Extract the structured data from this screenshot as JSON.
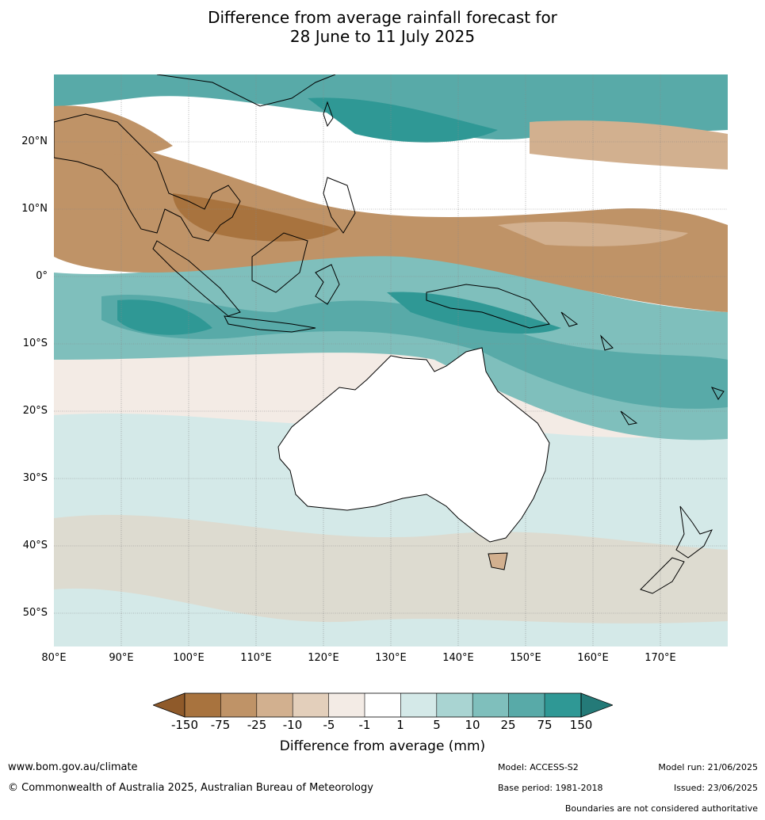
{
  "title": {
    "line1": "Difference from average rainfall forecast for",
    "line2": "28 June to 11 July 2025"
  },
  "map": {
    "lat_labels": [
      "20°N",
      "10°N",
      "0°",
      "10°S",
      "20°S",
      "30°S",
      "40°S",
      "50°S"
    ],
    "lon_labels": [
      "80°E",
      "90°E",
      "100°E",
      "110°E",
      "120°E",
      "130°E",
      "140°E",
      "150°E",
      "160°E",
      "170°E"
    ],
    "lat_range": [
      -55,
      30
    ],
    "lon_range": [
      80,
      180
    ]
  },
  "legend": {
    "title": "Difference from average (mm)",
    "ticks": [
      "-150",
      "-75",
      "-25",
      "-10",
      "-5",
      "-1",
      "1",
      "5",
      "10",
      "25",
      "75",
      "150"
    ],
    "colors": {
      "below_150": "#8f5a2a",
      "m150_m75": "#a8733e",
      "m75_m25": "#bf9367",
      "m25_m10": "#d2b08f",
      "m10_m5": "#e3cfbb",
      "m5_m1": "#f3ebe5",
      "m1_1": "#ffffff",
      "p1_5": "#d4e9e8",
      "p5_10": "#a9d4d2",
      "p10_25": "#7fbfbc",
      "p25_75": "#58aaa8",
      "p75_150": "#2f9895",
      "above_150": "#247a78"
    }
  },
  "footer": {
    "url": "www.bom.gov.au/climate",
    "copyright": "© Commonwealth of Australia 2025, Australian Bureau of Meteorology",
    "model": "Model: ACCESS-S2",
    "base_period": "Base period: 1981-2018",
    "model_run": "Model run: 21/06/2025",
    "issued": "Issued: 23/06/2025",
    "disclaimer": "Boundaries are not considered authoritative"
  }
}
